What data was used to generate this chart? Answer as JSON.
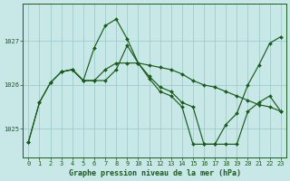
{
  "title": "Graphe pression niveau de la mer (hPa)",
  "bg": "#c8e8e8",
  "grid_color": "#a0cccc",
  "lc": "#1a5c1a",
  "series1_x": [
    0,
    1,
    2,
    3,
    4,
    5,
    6,
    7,
    8,
    9,
    10,
    11,
    12,
    13,
    14,
    15,
    16,
    17,
    18,
    19,
    20,
    21,
    22,
    23
  ],
  "series1_y": [
    1024.7,
    1025.6,
    1026.05,
    1026.3,
    1026.35,
    1026.1,
    1026.85,
    1027.35,
    1027.5,
    1027.05,
    1026.5,
    1026.15,
    1025.85,
    1025.75,
    1025.5,
    1024.65,
    1024.65,
    1024.65,
    1025.1,
    1025.35,
    1026.0,
    1026.45,
    1026.95,
    1027.1
  ],
  "series2_x": [
    0,
    1,
    2,
    3,
    4,
    5,
    6,
    7,
    8,
    9,
    10,
    11,
    12,
    13,
    14,
    15,
    16,
    17,
    18,
    19,
    20,
    21,
    22,
    23
  ],
  "series2_y": [
    1024.7,
    1025.6,
    1026.05,
    1026.3,
    1026.35,
    1026.1,
    1026.1,
    1026.35,
    1026.5,
    1026.5,
    1026.5,
    1026.45,
    1026.4,
    1026.35,
    1026.25,
    1026.1,
    1026.0,
    1025.95,
    1025.85,
    1025.75,
    1025.65,
    1025.55,
    1025.5,
    1025.4
  ],
  "series3_x": [
    3,
    4,
    5,
    6,
    7,
    8,
    9,
    10,
    11,
    12,
    13,
    14,
    15,
    16,
    17,
    18,
    19,
    20,
    21,
    22,
    23
  ],
  "series3_y": [
    1026.3,
    1026.35,
    1026.1,
    1026.1,
    1026.1,
    1026.35,
    1026.9,
    1026.5,
    1026.2,
    1025.95,
    1025.85,
    1025.6,
    1025.5,
    1024.65,
    1024.65,
    1024.65,
    1024.65,
    1025.4,
    1025.6,
    1025.75,
    1025.4
  ],
  "xlim": [
    -0.5,
    23.5
  ],
  "ylim": [
    1024.35,
    1027.85
  ],
  "yticks": [
    1025,
    1026,
    1027
  ],
  "xticks": [
    0,
    1,
    2,
    3,
    4,
    5,
    6,
    7,
    8,
    9,
    10,
    11,
    12,
    13,
    14,
    15,
    16,
    17,
    18,
    19,
    20,
    21,
    22,
    23
  ]
}
